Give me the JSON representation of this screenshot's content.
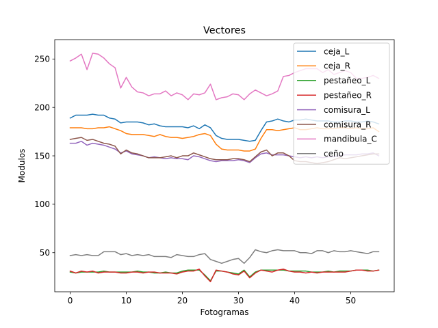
{
  "chart_data": {
    "type": "line",
    "title": "Vectores",
    "xlabel": "Fotogramas",
    "ylabel": "Modulos",
    "xlim": [
      -2.75,
      57.75
    ],
    "ylim": [
      9.6,
      270.0
    ],
    "xticks": [
      0,
      10,
      20,
      30,
      40,
      50
    ],
    "yticks": [
      50,
      100,
      150,
      200,
      250
    ],
    "grid": false,
    "legend_position": "upper right",
    "series": [
      {
        "name": "ceja_L",
        "color": "#1f77b4",
        "values": [
          189,
          192,
          192,
          192,
          193,
          192,
          192,
          189,
          188,
          184,
          185,
          185,
          185,
          184,
          182,
          183,
          181,
          180,
          180,
          180,
          180,
          179,
          181,
          178,
          182,
          179,
          171,
          168,
          167,
          167,
          167,
          166,
          165,
          166,
          176,
          185,
          186,
          188,
          186,
          185,
          187,
          187,
          188,
          187,
          186,
          186,
          186,
          185,
          185,
          186,
          186,
          185,
          185,
          186,
          185,
          183
        ]
      },
      {
        "name": "ceja_R",
        "color": "#ff7f0e",
        "values": [
          179,
          179,
          179,
          178,
          178,
          179,
          179,
          180,
          178,
          176,
          173,
          172,
          172,
          172,
          171,
          170,
          172,
          170,
          169,
          169,
          168,
          169,
          170,
          172,
          173,
          171,
          162,
          157,
          156,
          156,
          156,
          155,
          155,
          157,
          168,
          177,
          177,
          176,
          177,
          178,
          179,
          177,
          177,
          178,
          179,
          178,
          178,
          178,
          179,
          179,
          178,
          179,
          178,
          178,
          179,
          175
        ]
      },
      {
        "name": "pestañeo_L",
        "color": "#2ca02c",
        "values": [
          30,
          29,
          30,
          30,
          30,
          30,
          31,
          30,
          30,
          30,
          30,
          30,
          31,
          30,
          30,
          29,
          29,
          30,
          29,
          29,
          31,
          32,
          32,
          32,
          27,
          21,
          31,
          31,
          30,
          29,
          28,
          32,
          25,
          30,
          32,
          32,
          32,
          32,
          32,
          31,
          31,
          31,
          31,
          30,
          30,
          30,
          31,
          30,
          31,
          31,
          31,
          32,
          32,
          32,
          31,
          32
        ]
      },
      {
        "name": "pestañeo_R",
        "color": "#d62728",
        "values": [
          31,
          29,
          31,
          30,
          31,
          29,
          30,
          30,
          30,
          29,
          29,
          30,
          30,
          29,
          30,
          30,
          29,
          29,
          29,
          28,
          30,
          31,
          31,
          33,
          26,
          20,
          32,
          31,
          30,
          28,
          27,
          31,
          24,
          29,
          32,
          31,
          30,
          32,
          33,
          31,
          30,
          30,
          29,
          30,
          29,
          30,
          30,
          30,
          30,
          30,
          31,
          32,
          32,
          31,
          31,
          32
        ]
      },
      {
        "name": "comisura_L",
        "color": "#9467bd",
        "values": [
          163,
          163,
          165,
          161,
          163,
          162,
          161,
          159,
          157,
          153,
          155,
          152,
          151,
          150,
          148,
          149,
          148,
          147,
          148,
          147,
          147,
          146,
          150,
          149,
          147,
          145,
          144,
          145,
          145,
          145,
          146,
          145,
          143,
          148,
          152,
          153,
          151,
          151,
          151,
          150,
          149,
          148,
          149,
          148,
          149,
          148,
          149,
          149,
          150,
          151,
          151,
          151,
          152,
          152,
          153,
          150
        ]
      },
      {
        "name": "comisura_R",
        "color": "#8c564b",
        "values": [
          167,
          168,
          169,
          166,
          167,
          165,
          163,
          162,
          160,
          152,
          156,
          153,
          152,
          150,
          148,
          148,
          148,
          149,
          150,
          148,
          150,
          150,
          153,
          151,
          149,
          147,
          146,
          146,
          146,
          147,
          147,
          146,
          144,
          149,
          154,
          156,
          150,
          153,
          153,
          150,
          145,
          144,
          144,
          143,
          142,
          143,
          144,
          146,
          148,
          147,
          148,
          149,
          150,
          151,
          152,
          152
        ]
      },
      {
        "name": "mandibula_C",
        "color": "#e377c2",
        "values": [
          248,
          251,
          255,
          239,
          256,
          255,
          251,
          245,
          241,
          220,
          231,
          221,
          216,
          215,
          212,
          214,
          214,
          217,
          212,
          215,
          213,
          208,
          214,
          213,
          215,
          224,
          208,
          210,
          211,
          214,
          213,
          208,
          214,
          218,
          215,
          212,
          214,
          217,
          232,
          233,
          236,
          238,
          240,
          240,
          240,
          236,
          239,
          234,
          236,
          238,
          236,
          230,
          230,
          231,
          233,
          230
        ]
      },
      {
        "name": "ceño",
        "color": "#7f7f7f",
        "values": [
          47,
          48,
          47,
          48,
          47,
          47,
          51,
          51,
          51,
          48,
          49,
          47,
          48,
          47,
          48,
          46,
          46,
          46,
          45,
          48,
          47,
          46,
          46,
          48,
          49,
          43,
          41,
          39,
          41,
          43,
          44,
          39,
          45,
          53,
          51,
          50,
          52,
          53,
          52,
          52,
          52,
          50,
          50,
          49,
          52,
          52,
          50,
          52,
          51,
          51,
          52,
          51,
          50,
          49,
          51,
          51
        ]
      }
    ]
  }
}
